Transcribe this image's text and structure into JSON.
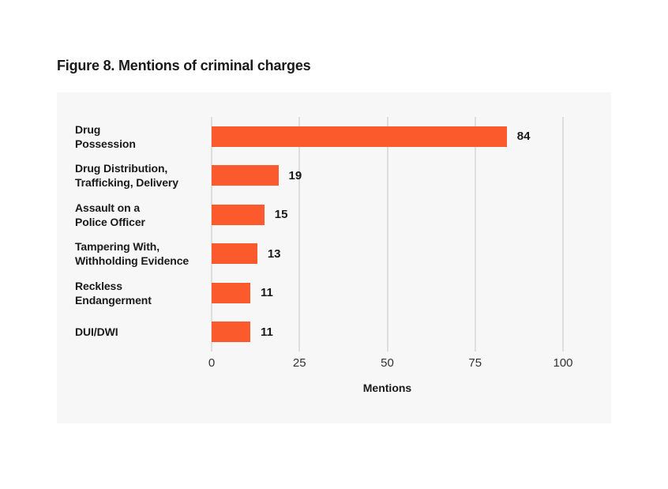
{
  "figure": {
    "title": "Figure 8. Mentions of criminal charges"
  },
  "chart_data": {
    "type": "bar",
    "orientation": "horizontal",
    "title": "Figure 8. Mentions of criminal charges",
    "categories": [
      "Drug Possession",
      "Drug Distribution, Trafficking, Delivery",
      "Assault on a Police Officer",
      "Tampering With, Withholding Evidence",
      "Reckless Endangerment",
      "DUI/DWI"
    ],
    "category_label_lines": [
      [
        "Drug",
        "Possession"
      ],
      [
        "Drug Distribution,",
        "Trafficking, Delivery"
      ],
      [
        "Assault on a",
        "Police Officer"
      ],
      [
        "Tampering With,",
        "Withholding Evidence"
      ],
      [
        "Reckless",
        "Endangerment"
      ],
      [
        "DUI/DWI"
      ]
    ],
    "values": [
      84,
      19,
      15,
      13,
      11,
      11
    ],
    "xlabel": "Mentions",
    "xticks": [
      0,
      25,
      50,
      75,
      100
    ],
    "xlim": [
      0,
      100
    ],
    "grid": true,
    "legend": false,
    "colors": {
      "bar": "#FA5A2C",
      "panel_background": "#F7F7F7",
      "gridline": "#C5C5C5",
      "text": "#1A1A1A",
      "tick_text": "#333333"
    }
  }
}
